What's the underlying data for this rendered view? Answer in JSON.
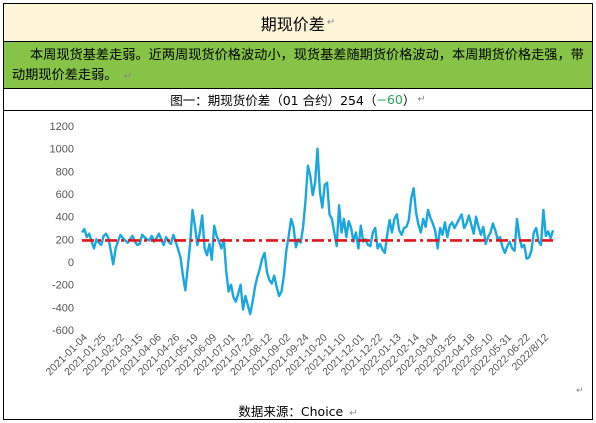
{
  "header": {
    "title": "期现价差",
    "summary": "本周现货基差走弱。近两周现货价格波动小，现货基差随期货价格波动，本周期货价格走强，带动期现价差走弱。",
    "caption_main": "图一：期现货价差（01 合约）254（",
    "caption_neg": "−60",
    "caption_close": "）",
    "mark": "↵",
    "source": "数据来源：Choice"
  },
  "chart_data": {
    "type": "line",
    "title": "",
    "xlabel": "",
    "ylabel": "",
    "ylim": [
      -600,
      1200
    ],
    "yticks": [
      -600,
      -400,
      -200,
      0,
      200,
      400,
      600,
      800,
      1000,
      1200
    ],
    "x_tick_labels": [
      "2021-01-04",
      "2021-01-25",
      "2021-02-22",
      "2021-03-15",
      "2021-04-06",
      "2021-04-26",
      "2021-05-19",
      "2021-06-09",
      "2021-07-01",
      "2021-07-22",
      "2021-08-12",
      "2021-09-02",
      "2021-09-24",
      "2021-10-20",
      "2021-11-10",
      "2021-12-01",
      "2021-12-22",
      "2022-01-13",
      "2022-02-14",
      "2022-03-04",
      "2022-03-25",
      "2022-04-18",
      "2022-05-10",
      "2022-05-31",
      "2022-06-22",
      "2022/8/12"
    ],
    "series": [
      {
        "color": "#1aa7df",
        "style": "solid",
        "values": [
          260,
          290,
          220,
          250,
          180,
          120,
          200,
          170,
          150,
          230,
          250,
          210,
          100,
          -20,
          120,
          180,
          240,
          210,
          190,
          170,
          200,
          230,
          180,
          150,
          160,
          240,
          220,
          200,
          190,
          230,
          180,
          210,
          250,
          200,
          150,
          220,
          180,
          160,
          240,
          180,
          110,
          40,
          -120,
          -250,
          -50,
          160,
          460,
          320,
          150,
          260,
          410,
          120,
          60,
          160,
          20,
          320,
          230,
          180,
          120,
          200,
          -80,
          -260,
          -200,
          -310,
          -350,
          -280,
          -200,
          -420,
          -300,
          -380,
          -460,
          -350,
          -220,
          -130,
          -60,
          30,
          80,
          -90,
          -160,
          -190,
          -120,
          -220,
          -300,
          -260,
          -120,
          100,
          230,
          380,
          310,
          130,
          200,
          170,
          310,
          540,
          850,
          760,
          590,
          700,
          1000,
          620,
          480,
          680,
          700,
          420,
          380,
          260,
          140,
          500,
          260,
          380,
          220,
          360,
          300,
          180,
          260,
          120,
          320,
          180,
          200,
          150,
          140,
          260,
          300,
          120,
          160,
          110,
          80,
          240,
          370,
          260,
          380,
          420,
          280,
          240,
          300,
          310,
          370,
          560,
          650,
          440,
          330,
          260,
          380,
          310,
          460,
          390,
          340,
          270,
          120,
          300,
          240,
          350,
          220,
          320,
          350,
          300,
          340,
          380,
          420,
          300,
          340,
          410,
          330,
          250,
          400,
          310,
          240,
          310,
          160,
          220,
          260,
          340,
          280,
          200,
          220,
          130,
          80,
          140,
          180,
          120,
          100,
          380,
          220,
          130,
          150,
          30,
          40,
          100,
          260,
          300,
          180,
          150,
          460,
          230,
          270,
          210,
          280
        ]
      },
      {
        "color": "#e4141b",
        "style": "dash-dot",
        "values": [
          190,
          190
        ]
      }
    ],
    "grid": false,
    "legend": "none"
  }
}
